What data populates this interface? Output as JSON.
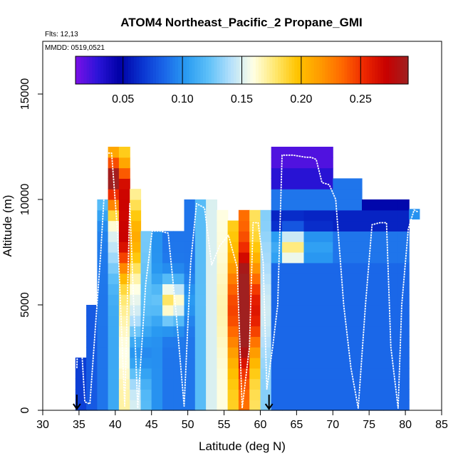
{
  "chart_data": {
    "type": "heatmap",
    "title": "ATOM4 Northeast_Pacific_2 Propane_GMI",
    "annotations": [
      "Flts: 12,13",
      "MMDD: 0519,0521"
    ],
    "xlabel": "Latitude (deg N)",
    "ylabel": "Altitude (m)",
    "xlim": [
      30,
      85
    ],
    "ylim": [
      0,
      17500
    ],
    "x_ticks": [
      30,
      35,
      40,
      45,
      50,
      55,
      60,
      65,
      70,
      75,
      80,
      85
    ],
    "y_ticks": [
      0,
      5000,
      10000,
      15000
    ],
    "colorbar": {
      "range": [
        0.01,
        0.29
      ],
      "ticks": [
        0.05,
        0.1,
        0.15,
        0.2,
        0.25
      ],
      "tick_labels": [
        "0.05",
        "0.10",
        "0.15",
        "0.20",
        "0.25"
      ],
      "placement": "top-inset",
      "colors": [
        "#7b10e8",
        "#2b14d8",
        "#0000a6",
        "#0a34d0",
        "#1a66e8",
        "#2a9cf2",
        "#5ec0f8",
        "#b4e0fb",
        "#ffffe6",
        "#ffe870",
        "#ffc400",
        "#ff9c00",
        "#ff6a00",
        "#ee2800",
        "#c80000",
        "#a02020"
      ]
    },
    "altitude_levels_m": [
      250,
      750,
      1250,
      1750,
      2250,
      2750,
      3250,
      3750,
      4250,
      4750,
      5250,
      5750,
      6250,
      6750,
      7250,
      7750,
      8250,
      8750,
      9250,
      9750,
      10250,
      10750,
      11250,
      11750,
      12250
    ],
    "latitude_bins_deg": [
      [
        34.5,
        36.0,
        0.07
      ],
      [
        36.0,
        37.5,
        0.08
      ],
      [
        37.5,
        39.0,
        0.09
      ],
      [
        39.0,
        40.5,
        0.11
      ],
      [
        40.5,
        42.0,
        0.17
      ],
      [
        42.0,
        43.5,
        0.15
      ],
      [
        43.5,
        45.0,
        0.12
      ],
      [
        45.0,
        46.5,
        0.1
      ],
      [
        46.5,
        48.0,
        0.09
      ],
      [
        48.0,
        49.5,
        0.09
      ],
      [
        49.5,
        51.0,
        0.09
      ],
      [
        51.0,
        52.5,
        0.12
      ],
      [
        52.5,
        54.0,
        0.15
      ],
      [
        54.0,
        55.5,
        0.16
      ],
      [
        55.5,
        57.0,
        0.19
      ],
      [
        57.0,
        58.5,
        0.23
      ],
      [
        58.5,
        60.0,
        0.18
      ],
      [
        60.0,
        61.5,
        0.13
      ],
      [
        61.5,
        63.0,
        0.09
      ],
      [
        63.0,
        66.0,
        0.09
      ],
      [
        66.0,
        70.0,
        0.09
      ],
      [
        70.0,
        74.0,
        0.09
      ],
      [
        74.0,
        77.0,
        0.09
      ],
      [
        77.0,
        79.0,
        0.09
      ],
      [
        79.0,
        80.5,
        0.09
      ]
    ],
    "flight_track": {
      "color": "white",
      "points": [
        [
          34.7,
          2000
        ],
        [
          35.0,
          5000
        ],
        [
          35.8,
          400
        ],
        [
          36.5,
          300
        ],
        [
          38.0,
          7500
        ],
        [
          38.8,
          12200
        ],
        [
          39.5,
          12200
        ],
        [
          40.3,
          8500
        ],
        [
          41.3,
          200
        ],
        [
          42.0,
          9800
        ],
        [
          43.1,
          100
        ],
        [
          44.2,
          6000
        ],
        [
          45.1,
          8500
        ],
        [
          46.2,
          8500
        ],
        [
          47.3,
          8400
        ],
        [
          48.4,
          4600
        ],
        [
          49.5,
          200
        ],
        [
          50.4,
          7000
        ],
        [
          51.2,
          9800
        ],
        [
          52.3,
          9600
        ],
        [
          53.3,
          6900
        ],
        [
          54.4,
          7800
        ],
        [
          55.6,
          8300
        ],
        [
          56.8,
          6800
        ],
        [
          57.5,
          100
        ],
        [
          58.5,
          3000
        ],
        [
          59.0,
          8900
        ],
        [
          59.7,
          8900
        ],
        [
          60.4,
          7000
        ],
        [
          60.9,
          1000
        ],
        [
          61.7,
          3000
        ],
        [
          62.4,
          5000
        ],
        [
          63.0,
          12100
        ],
        [
          64.5,
          12100
        ],
        [
          66.3,
          12000
        ],
        [
          67.0,
          12000
        ],
        [
          67.7,
          11900
        ],
        [
          68.5,
          10800
        ],
        [
          69.5,
          10700
        ],
        [
          70.4,
          10000
        ],
        [
          71.5,
          5000
        ],
        [
          72.5,
          2000
        ],
        [
          73.5,
          100
        ],
        [
          74.5,
          5000
        ],
        [
          75.4,
          8800
        ],
        [
          76.5,
          8900
        ],
        [
          77.4,
          8900
        ],
        [
          78.0,
          3000
        ],
        [
          79.0,
          100
        ],
        [
          79.5,
          5000
        ],
        [
          80.4,
          8600
        ],
        [
          81.2,
          9500
        ],
        [
          81.8,
          9400
        ]
      ]
    },
    "markers": [
      {
        "type": "arrow-down",
        "x": 34.7
      },
      {
        "type": "arrow-down",
        "x": 61.2
      }
    ],
    "grid": false,
    "legend": "colorbar top-inset"
  }
}
